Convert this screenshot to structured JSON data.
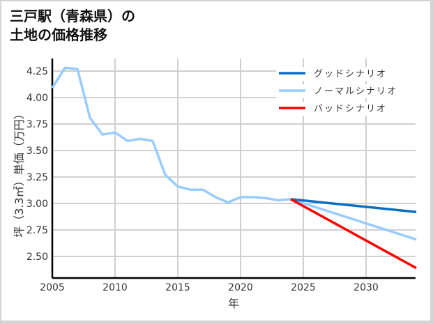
{
  "title": {
    "line1": "三戸駅（青森県）の",
    "line2": "土地の価格推移"
  },
  "chart_data": {
    "type": "line",
    "title": "三戸駅（青森県）の土地の価格推移",
    "xlabel": "年",
    "ylabel": "坪（3.3㎡）単価（万円）",
    "xlim": [
      2005,
      2034
    ],
    "ylim": [
      2.3,
      4.3
    ],
    "x_ticks": [
      2005,
      2010,
      2015,
      2020,
      2025,
      2030
    ],
    "y_ticks": [
      2.5,
      2.75,
      3.0,
      3.25,
      3.5,
      3.75,
      4.0,
      4.25
    ],
    "x_tick_labels": [
      "2005",
      "2010",
      "2015",
      "2020",
      "2025",
      "2030"
    ],
    "y_tick_labels": [
      "2.50",
      "2.75",
      "3.00",
      "3.25",
      "3.50",
      "3.75",
      "4.00",
      "4.25"
    ],
    "grid": true,
    "legend_position": "upper right",
    "series": [
      {
        "name": "グッドシナリオ",
        "color": "#0a6fc2",
        "x": [
          2024,
          2034
        ],
        "values": [
          3.04,
          2.92
        ]
      },
      {
        "name": "ノーマルシナリオ",
        "color": "#99ccff",
        "x": [
          2005,
          2006,
          2007,
          2008,
          2009,
          2010,
          2011,
          2012,
          2013,
          2014,
          2015,
          2016,
          2017,
          2018,
          2019,
          2020,
          2021,
          2022,
          2023,
          2024,
          2034
        ],
        "values": [
          4.09,
          4.28,
          4.27,
          3.81,
          3.65,
          3.67,
          3.59,
          3.61,
          3.59,
          3.27,
          3.16,
          3.13,
          3.13,
          3.06,
          3.01,
          3.06,
          3.06,
          3.05,
          3.03,
          3.04,
          2.66
        ]
      },
      {
        "name": "バッドシナリオ",
        "color": "#ff0000",
        "x": [
          2024,
          2034
        ],
        "values": [
          3.04,
          2.39
        ]
      }
    ]
  }
}
